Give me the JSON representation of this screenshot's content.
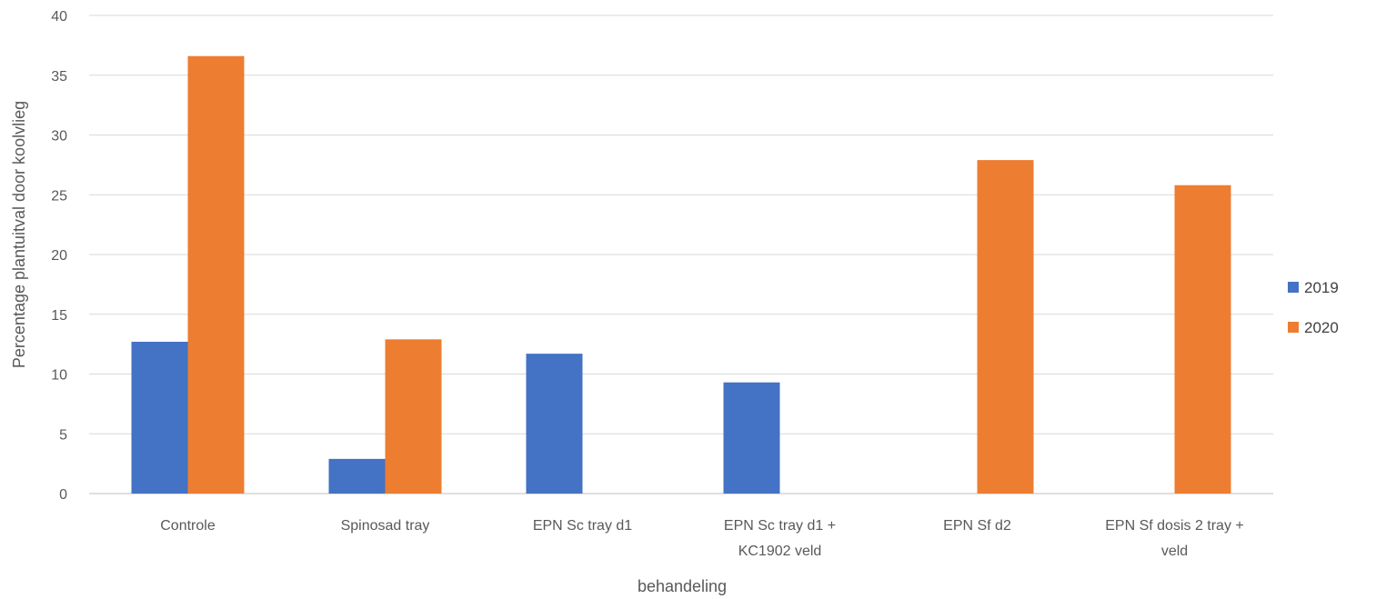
{
  "chart_data": {
    "type": "bar",
    "title": "",
    "xlabel": "behandeling",
    "ylabel": "Percentage plantuitval door koolvlieg",
    "ylim": [
      0,
      40
    ],
    "yticks": [
      0,
      5,
      10,
      15,
      20,
      25,
      30,
      35,
      40
    ],
    "grid": true,
    "legend_position": "right",
    "categories": [
      [
        "Controle"
      ],
      [
        "Spinosad tray"
      ],
      [
        "EPN Sc tray d1"
      ],
      [
        "EPN Sc tray d1 +",
        "KC1902 veld"
      ],
      [
        "EPN Sf d2"
      ],
      [
        "EPN Sf dosis 2 tray +",
        "veld"
      ]
    ],
    "series": [
      {
        "name": "2019",
        "color": "#4472C4",
        "values": [
          12.7,
          2.9,
          11.7,
          9.3,
          null,
          null
        ]
      },
      {
        "name": "2020",
        "color": "#ED7D31",
        "values": [
          36.6,
          12.9,
          null,
          null,
          27.9,
          25.8
        ]
      }
    ]
  }
}
